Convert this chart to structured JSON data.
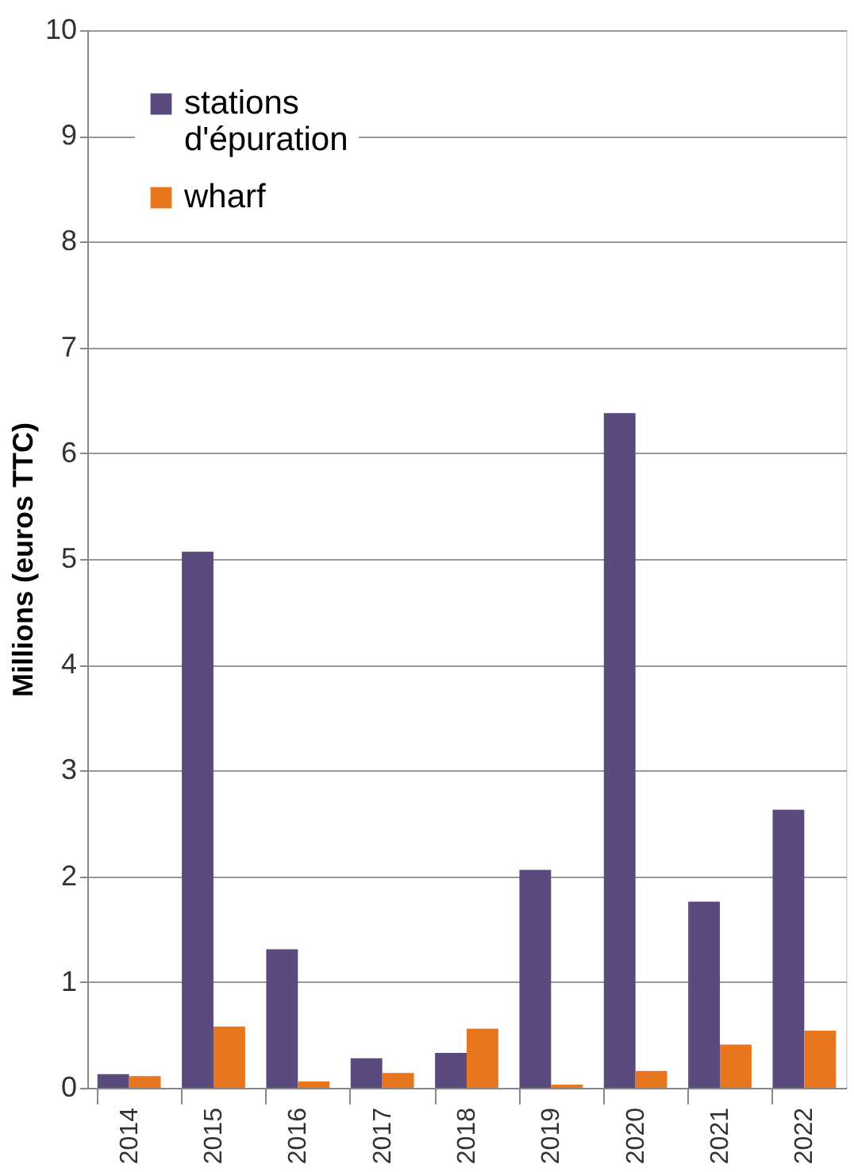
{
  "chart_data": {
    "type": "bar",
    "ylabel": "Millions (euros TTC)",
    "categories": [
      "2014",
      "2015",
      "2016",
      "2017",
      "2018",
      "2019",
      "2020",
      "2021",
      "2022"
    ],
    "series": [
      {
        "name": "stations d'épuration",
        "color": "#5b4a7e",
        "values": [
          0.13,
          5.07,
          1.31,
          0.28,
          0.33,
          2.06,
          6.38,
          1.76,
          2.63
        ]
      },
      {
        "name": "wharf",
        "color": "#e8761e",
        "values": [
          0.11,
          0.58,
          0.06,
          0.14,
          0.56,
          0.03,
          0.16,
          0.41,
          0.54
        ]
      }
    ],
    "ylim": [
      0,
      10
    ],
    "yticks": [
      0,
      1,
      2,
      3,
      4,
      5,
      6,
      7,
      8,
      9,
      10
    ],
    "grid": "y",
    "legend": "top left"
  }
}
